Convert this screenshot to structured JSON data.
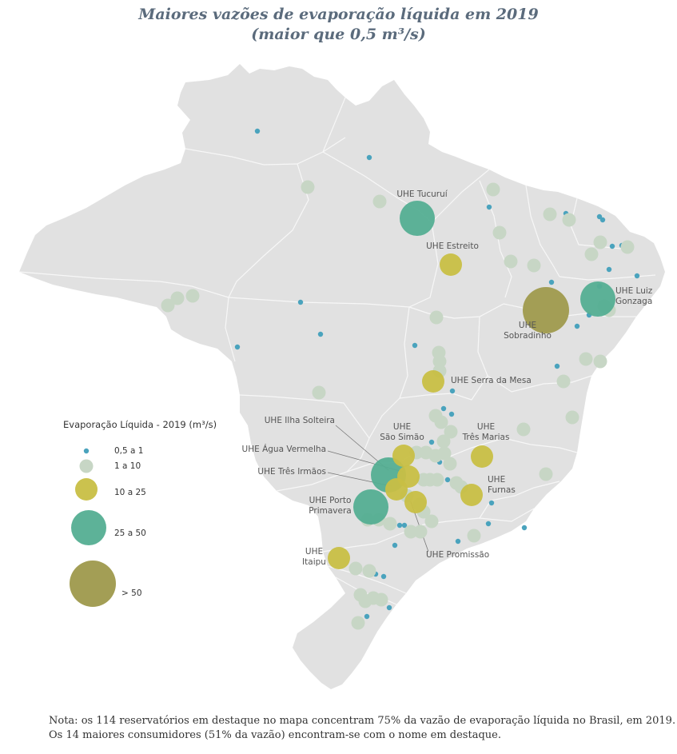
{
  "title_line1": "Maiores vazões de evaporação líquida em 2019",
  "title_line2": "(maior que 0,5 m³/s)",
  "colors": {
    "land": "#e1e1e1",
    "state_border": "#f6f6f6",
    "class_0_5_a_1": "#4aa3bd",
    "class_1_a_10": "#c7d6c5",
    "class_10_a_25": "#c8bf45",
    "class_25_a_50": "#54ae92",
    "class_gt_50": "#a39e55"
  },
  "legend": {
    "title": "Evaporação Líquida - 2019 (m³/s)",
    "items": [
      {
        "label": "0,5 a 1",
        "class": "c1"
      },
      {
        "label": "1 a 10",
        "class": "c2"
      },
      {
        "label": "10 a 25",
        "class": "c3"
      },
      {
        "label": "25 a 50",
        "class": "c4"
      },
      {
        "label": "> 50",
        "class": "c5"
      }
    ]
  },
  "reservoirs": [
    {
      "name": "UHE Sobradinho",
      "label_lines": [
        "UHE",
        "Sobradinho"
      ],
      "class": "c5"
    },
    {
      "name": "UHE Tucuruí",
      "label_lines": [
        "UHE Tucuruí"
      ],
      "class": "c4"
    },
    {
      "name": "UHE Luiz Gonzaga",
      "label_lines": [
        "UHE Luiz",
        "Gonzaga"
      ],
      "class": "c4"
    },
    {
      "name": "UHE Ilha Solteira",
      "label_lines": [
        "UHE Ilha Solteira"
      ],
      "class": "c4"
    },
    {
      "name": "UHE Porto Primavera",
      "label_lines": [
        "UHE Porto",
        "Primavera"
      ],
      "class": "c4"
    },
    {
      "name": "UHE Estreito",
      "label_lines": [
        "UHE Estreito"
      ],
      "class": "c3"
    },
    {
      "name": "UHE Serra da Mesa",
      "label_lines": [
        "UHE Serra da Mesa"
      ],
      "class": "c3"
    },
    {
      "name": "UHE São Simão",
      "label_lines": [
        "UHE",
        "São Simão"
      ],
      "class": "c3"
    },
    {
      "name": "UHE Água Vermelha",
      "label_lines": [
        "UHE Água Vermelha"
      ],
      "class": "c3"
    },
    {
      "name": "UHE Três Irmãos",
      "label_lines": [
        "UHE Três Irmãos"
      ],
      "class": "c3"
    },
    {
      "name": "UHE Três Marias",
      "label_lines": [
        "UHE",
        "Três Marias"
      ],
      "class": "c3"
    },
    {
      "name": "UHE Furnas",
      "label_lines": [
        "UHE",
        "Furnas"
      ],
      "class": "c3"
    },
    {
      "name": "UHE Promissão",
      "label_lines": [
        "UHE Promissão"
      ],
      "class": "c3"
    },
    {
      "name": "UHE Itaipu",
      "label_lines": [
        "UHE",
        "Itaipu"
      ],
      "class": "c3"
    }
  ],
  "note_line1": "Nota: os 114 reservatórios em destaque no mapa concentram 75% da vazão de evaporação líquida no Brasil, em 2019.",
  "note_line2": "Os 14 maiores consumidores (51% da vazão) encontram-se com o nome em destaque."
}
